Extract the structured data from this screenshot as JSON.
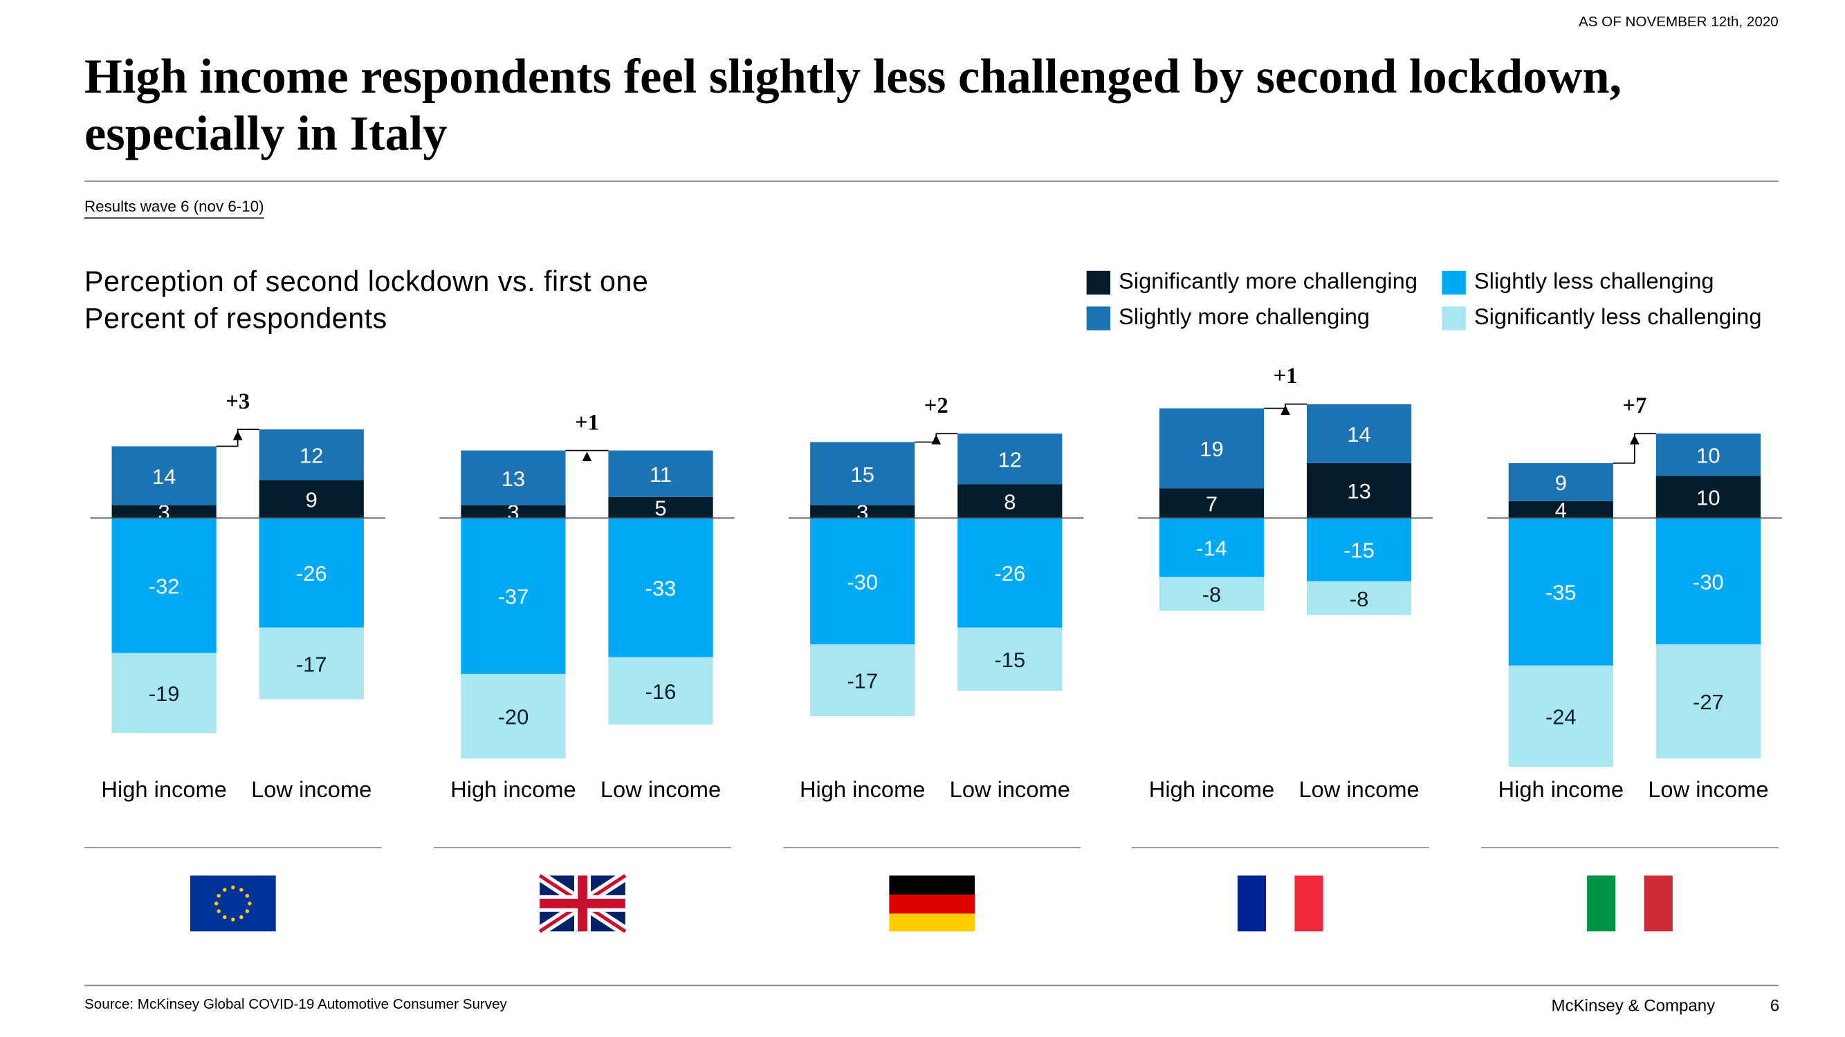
{
  "as_of": "AS OF NOVEMBER 12th, 2020",
  "title": "High income respondents feel slightly less challenged by second lockdown, especially in Italy",
  "wave": "Results wave 6 (nov 6-10)",
  "chart_heading": "Perception of second lockdown vs. first one",
  "chart_subheading": "Percent of respondents",
  "chart_data": [
    {
      "type": "bar",
      "stacked": true,
      "categories": [
        "High income",
        "Low income"
      ],
      "annotation": "+3",
      "series": [
        {
          "name": "Significantly more challenging",
          "color": "#051c2c",
          "values": [
            3,
            9
          ]
        },
        {
          "name": "Slightly more challenging",
          "color": "#1b73b1",
          "values": [
            14,
            12
          ]
        },
        {
          "name": "Slightly less challenging",
          "color": "#00a9f4",
          "values": [
            -32,
            -26
          ]
        },
        {
          "name": "Significantly less challenging",
          "color": "#aae6f0",
          "values": [
            -19,
            -17
          ]
        }
      ]
    },
    {
      "type": "bar",
      "stacked": true,
      "categories": [
        "High income",
        "Low income"
      ],
      "annotation": "+1",
      "series": [
        {
          "name": "Significantly more challenging",
          "color": "#051c2c",
          "values": [
            3,
            5
          ]
        },
        {
          "name": "Slightly more challenging",
          "color": "#1b73b1",
          "values": [
            13,
            11
          ]
        },
        {
          "name": "Slightly less challenging",
          "color": "#00a9f4",
          "values": [
            -37,
            -33
          ]
        },
        {
          "name": "Significantly less challenging",
          "color": "#aae6f0",
          "values": [
            -20,
            -16
          ]
        }
      ]
    },
    {
      "type": "bar",
      "stacked": true,
      "categories": [
        "High income",
        "Low income"
      ],
      "annotation": "+2",
      "series": [
        {
          "name": "Significantly more challenging",
          "color": "#051c2c",
          "values": [
            3,
            8
          ]
        },
        {
          "name": "Slightly more challenging",
          "color": "#1b73b1",
          "values": [
            15,
            12
          ]
        },
        {
          "name": "Slightly less challenging",
          "color": "#00a9f4",
          "values": [
            -30,
            -26
          ]
        },
        {
          "name": "Significantly less challenging",
          "color": "#aae6f0",
          "values": [
            -17,
            -15
          ]
        }
      ]
    },
    {
      "type": "bar",
      "stacked": true,
      "categories": [
        "High income",
        "Low income"
      ],
      "annotation": "+1",
      "series": [
        {
          "name": "Significantly more challenging",
          "color": "#051c2c",
          "values": [
            7,
            13
          ]
        },
        {
          "name": "Slightly more challenging",
          "color": "#1b73b1",
          "values": [
            19,
            14
          ]
        },
        {
          "name": "Slightly less challenging",
          "color": "#00a9f4",
          "values": [
            -14,
            -15
          ]
        },
        {
          "name": "Significantly less challenging",
          "color": "#aae6f0",
          "values": [
            -8,
            -8
          ]
        }
      ]
    },
    {
      "type": "bar",
      "stacked": true,
      "categories": [
        "High income",
        "Low income"
      ],
      "annotation": "+7",
      "series": [
        {
          "name": "Significantly more challenging",
          "color": "#051c2c",
          "values": [
            4,
            10
          ]
        },
        {
          "name": "Slightly more challenging",
          "color": "#1b73b1",
          "values": [
            9,
            10
          ]
        },
        {
          "name": "Slightly less challenging",
          "color": "#00a9f4",
          "values": [
            -35,
            -30
          ]
        },
        {
          "name": "Significantly less challenging",
          "color": "#aae6f0",
          "values": [
            -24,
            -27
          ]
        }
      ]
    }
  ],
  "footer": {
    "source": "Source: McKinsey Global COVID-19 Automotive Consumer Survey",
    "company": "McKinsey & Company",
    "page": 6
  }
}
